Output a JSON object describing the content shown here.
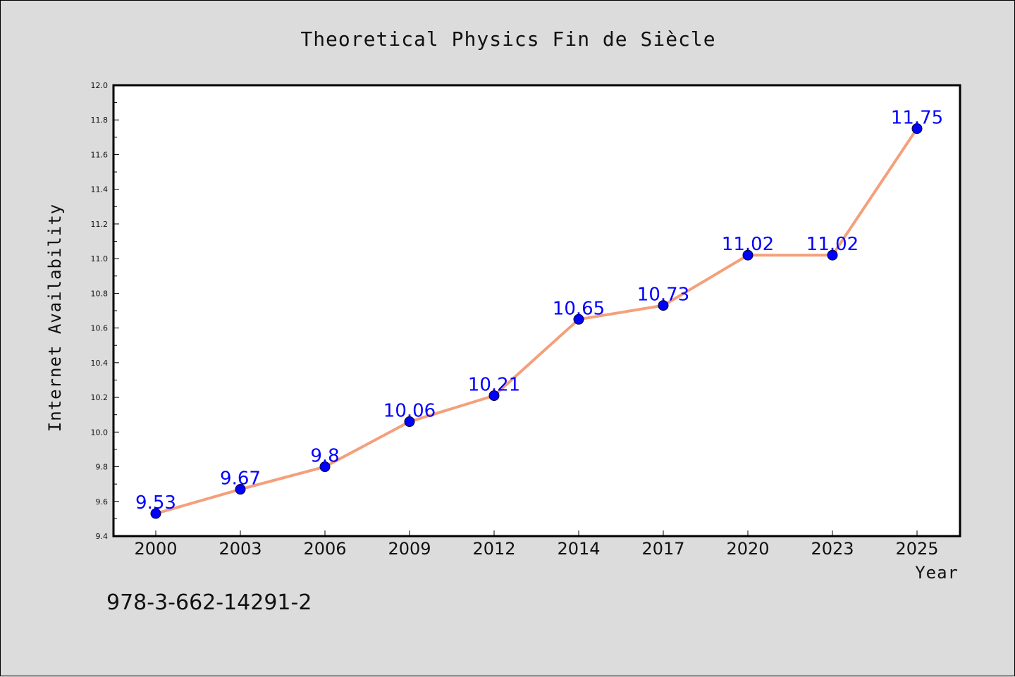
{
  "chart_data": {
    "type": "line",
    "title": "Theoretical Physics Fin de Siècle",
    "xlabel": "Year",
    "ylabel": "Internet Availability",
    "categories": [
      "2000",
      "2003",
      "2006",
      "2009",
      "2012",
      "2014",
      "2017",
      "2020",
      "2023",
      "2025"
    ],
    "series": [
      {
        "values": [
          9.53,
          9.67,
          9.8,
          10.06,
          10.21,
          10.65,
          10.73,
          11.02,
          11.02,
          11.75
        ],
        "data_labels": [
          "9.53",
          "9.67",
          "9.8",
          "10.06",
          "10.21",
          "10.65",
          "10.73",
          "11.02",
          "11.02",
          "11.75"
        ],
        "line_color": "#f4a07a",
        "marker_color": "#0000ff"
      }
    ],
    "ylim": [
      9.4,
      12.0
    ],
    "yticks": [
      "9.4",
      "9.6",
      "9.8",
      "10.0",
      "10.2",
      "10.4",
      "10.6",
      "10.8",
      "11.0",
      "11.2",
      "11.4",
      "11.6",
      "11.8",
      "12.0"
    ],
    "grid": false,
    "legend": "none"
  },
  "footer": {
    "isbn": "978-3-662-14291-2"
  },
  "colors": {
    "background": "#dcdcdc",
    "plot_background": "#ffffff",
    "line": "#f4a07a",
    "marker": "#0000ff",
    "data_label": "#0000ff"
  }
}
